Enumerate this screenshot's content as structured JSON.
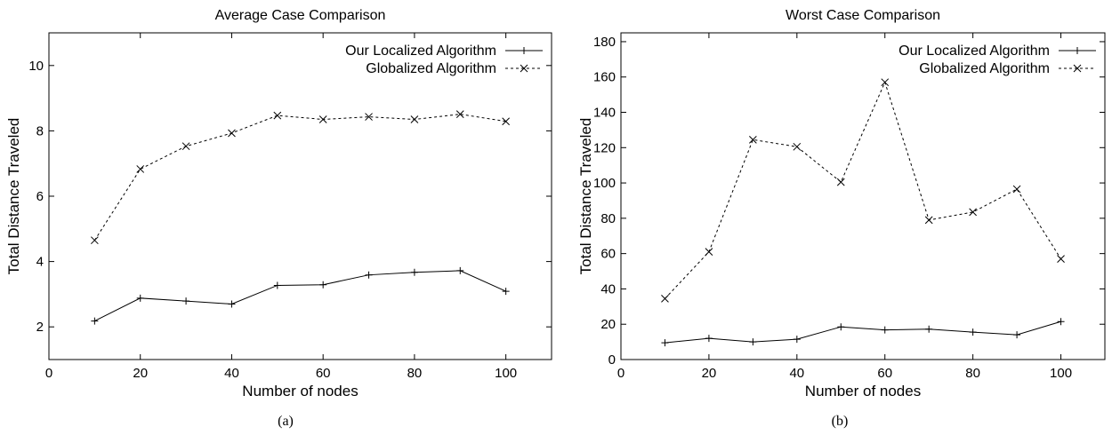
{
  "chart_data": [
    {
      "type": "line",
      "panel_label": "(a)",
      "title": "Average Case Comparison",
      "xlabel": "Number of nodes",
      "ylabel": "Total Distance Traveled",
      "xlim": [
        0,
        110
      ],
      "ylim": [
        1,
        11
      ],
      "xticks": [
        0,
        20,
        40,
        60,
        80,
        100
      ],
      "yticks": [
        2,
        4,
        6,
        8,
        10
      ],
      "grid": false,
      "legend_position": "top-right",
      "x": [
        10,
        20,
        30,
        40,
        50,
        60,
        70,
        80,
        90,
        100
      ],
      "series": [
        {
          "name": "Our Localized Algorithm",
          "line": "solid",
          "marker": "plus",
          "values": [
            2.18,
            2.88,
            2.79,
            2.7,
            3.27,
            3.29,
            3.59,
            3.67,
            3.72,
            3.09
          ]
        },
        {
          "name": "Globalized Algorithm",
          "line": "dashed",
          "marker": "cross",
          "values": [
            4.65,
            6.83,
            7.53,
            7.93,
            8.47,
            8.35,
            8.43,
            8.35,
            8.51,
            8.29
          ]
        }
      ]
    },
    {
      "type": "line",
      "panel_label": "(b)",
      "title": "Worst Case Comparison",
      "xlabel": "Number of nodes",
      "ylabel": "Total Distance Traveled",
      "xlim": [
        0,
        110
      ],
      "ylim": [
        0,
        185
      ],
      "xticks": [
        0,
        20,
        40,
        60,
        80,
        100
      ],
      "yticks": [
        0,
        20,
        40,
        60,
        80,
        100,
        120,
        140,
        160,
        180
      ],
      "grid": false,
      "legend_position": "top-right",
      "x": [
        10,
        20,
        30,
        40,
        50,
        60,
        70,
        80,
        90,
        100
      ],
      "series": [
        {
          "name": "Our Localized Algorithm",
          "line": "solid",
          "marker": "plus",
          "values": [
            9.5,
            12.0,
            10.0,
            11.5,
            18.5,
            16.8,
            17.2,
            15.5,
            14.0,
            21.5
          ]
        },
        {
          "name": "Globalized Algorithm",
          "line": "dashed",
          "marker": "cross",
          "values": [
            34.5,
            61.0,
            124.5,
            120.5,
            100.5,
            157.0,
            79.0,
            83.5,
            96.5,
            57.0
          ]
        }
      ]
    }
  ]
}
